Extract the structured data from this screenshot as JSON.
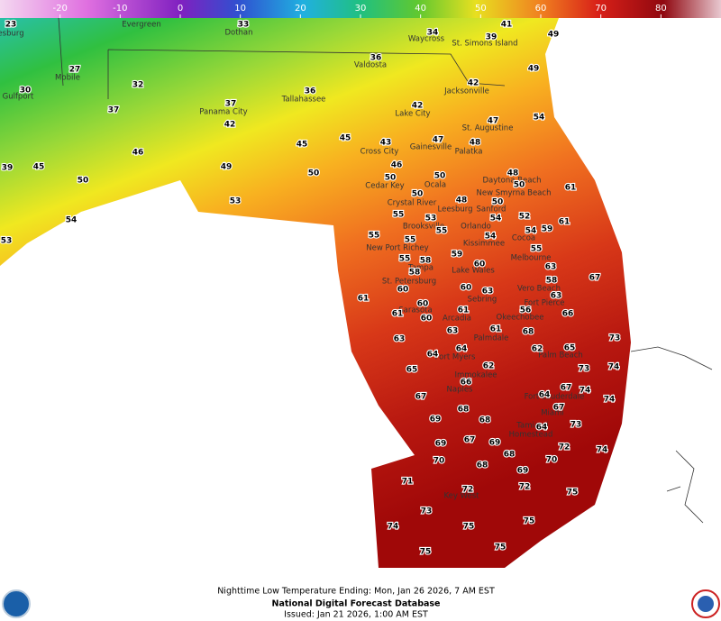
{
  "colorbar": {
    "lim": [
      -30,
      90
    ],
    "ticks": [
      -20,
      -10,
      0,
      10,
      20,
      30,
      40,
      50,
      60,
      70,
      80
    ]
  },
  "cities": [
    "esburg",
    "Evergreen",
    "Dothan",
    "Waycross",
    "St. Simons Island",
    "Valdosta",
    "Mobile",
    "Jacksonville",
    "Gulfport",
    "Tallahassee",
    "Panama City",
    "Lake City",
    "St. Augustine",
    "Gainesville",
    "Palatka",
    "Cross City",
    "Daytona Beach",
    "Ocala",
    "Cedar Key",
    "New Smyrna Beach",
    "Crystal River",
    "Leesburg",
    "Sanford",
    "Orlando",
    "Brooksville",
    "Cocoa",
    "Kissimmee",
    "New Port Richey",
    "Melbourne",
    "Tampa",
    "Lake Wales",
    "St. Petersburg",
    "Vero Beach",
    "Sebring",
    "Fort Pierce",
    "Sarasota",
    "Okeechobee",
    "Arcadia",
    "Palmdale",
    "Palm Beach",
    "Fort Myers",
    "Immokalee",
    "Naples",
    "Fort Lauderdale",
    "Miami",
    "Tamiami",
    "Homestead",
    "Key West"
  ],
  "temperatures": [
    23,
    33,
    34,
    39,
    41,
    49,
    27,
    36,
    49,
    32,
    42,
    30,
    36,
    37,
    37,
    42,
    54,
    42,
    47,
    45,
    45,
    43,
    47,
    48,
    46,
    46,
    49,
    39,
    45,
    48,
    50,
    50,
    50,
    50,
    50,
    61,
    53,
    50,
    48,
    50,
    52,
    55,
    53,
    54,
    61,
    54,
    55,
    55,
    54,
    54,
    59,
    55,
    53,
    55,
    59,
    58,
    55,
    60,
    63,
    58,
    58,
    67,
    60,
    60,
    63,
    63,
    61,
    60,
    56,
    66,
    61,
    61,
    60,
    63,
    61,
    68,
    73,
    63,
    62,
    65,
    64,
    64,
    74,
    65,
    62,
    73,
    66,
    67,
    74,
    67,
    64,
    74,
    68,
    67,
    69,
    68,
    64,
    73,
    69,
    67,
    69,
    72,
    74,
    68,
    70,
    68,
    70,
    69,
    71,
    72,
    72,
    75,
    73,
    75,
    74,
    75,
    75,
    75
  ],
  "footer": {
    "product": "Nighttime Low Temperature Ending: Mon, Jan 26 2026, 7 AM EST",
    "source": "National Digital Forecast Database",
    "issued": "Issued: Jan 21 2026, 1:00 AM EST"
  }
}
